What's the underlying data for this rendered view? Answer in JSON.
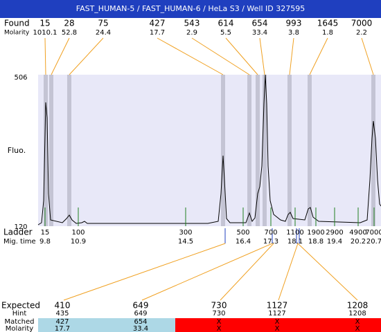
{
  "header": {
    "title": "FAST_HUMAN-5 / FAST_HUMAN-6 / HeLa S3 / Well ID 327595"
  },
  "found": {
    "label": "Found",
    "molarity_label": "Molarity",
    "peaks": [
      {
        "size": 15,
        "molarity": 1010.1
      },
      {
        "size": 28,
        "molarity": 52.8
      },
      {
        "size": 75,
        "molarity": 24.4
      },
      {
        "size": 427,
        "molarity": 17.7
      },
      {
        "size": 543,
        "molarity": 2.9
      },
      {
        "size": 614,
        "molarity": 5.5
      },
      {
        "size": 654,
        "molarity": 33.4
      },
      {
        "size": 993,
        "molarity": 3.8
      },
      {
        "size": 1645,
        "molarity": 1.8
      },
      {
        "size": 7000,
        "molarity": 2.2
      }
    ]
  },
  "plot": {
    "y_label": "Fluo.",
    "y_max": 506,
    "y_min": 120
  },
  "ladder": {
    "label": "Ladder",
    "time_label": "Mig. time",
    "items": [
      {
        "size": 15,
        "time": 9.8
      },
      {
        "size": 100,
        "time": 10.9
      },
      {
        "size": 300,
        "time": 14.5
      },
      {
        "size": 500,
        "time": 16.4
      },
      {
        "size": 700,
        "time": 17.3
      },
      {
        "size": 1100,
        "time": 18.1
      },
      {
        "size": 1900,
        "time": 18.8
      },
      {
        "size": 2900,
        "time": 19.4
      },
      {
        "size": 4900,
        "time": 20.2
      },
      {
        "size": 7000,
        "time": 20.7
      }
    ]
  },
  "expected": {
    "labels": [
      "Expected",
      "Hint",
      "Matched",
      "Molarity"
    ],
    "columns": [
      {
        "expected": 410,
        "hint": 435,
        "matched": 427,
        "molarity": 17.7
      },
      {
        "expected": 649,
        "hint": 649,
        "matched": 654,
        "molarity": 33.4
      },
      {
        "expected": 730,
        "hint": 730,
        "matched": "X",
        "molarity": "X"
      },
      {
        "expected": 1127,
        "hint": 1127,
        "matched": "X",
        "molarity": "X"
      },
      {
        "expected": 1208,
        "hint": 1208,
        "matched": "X",
        "molarity": "X"
      }
    ]
  }
}
